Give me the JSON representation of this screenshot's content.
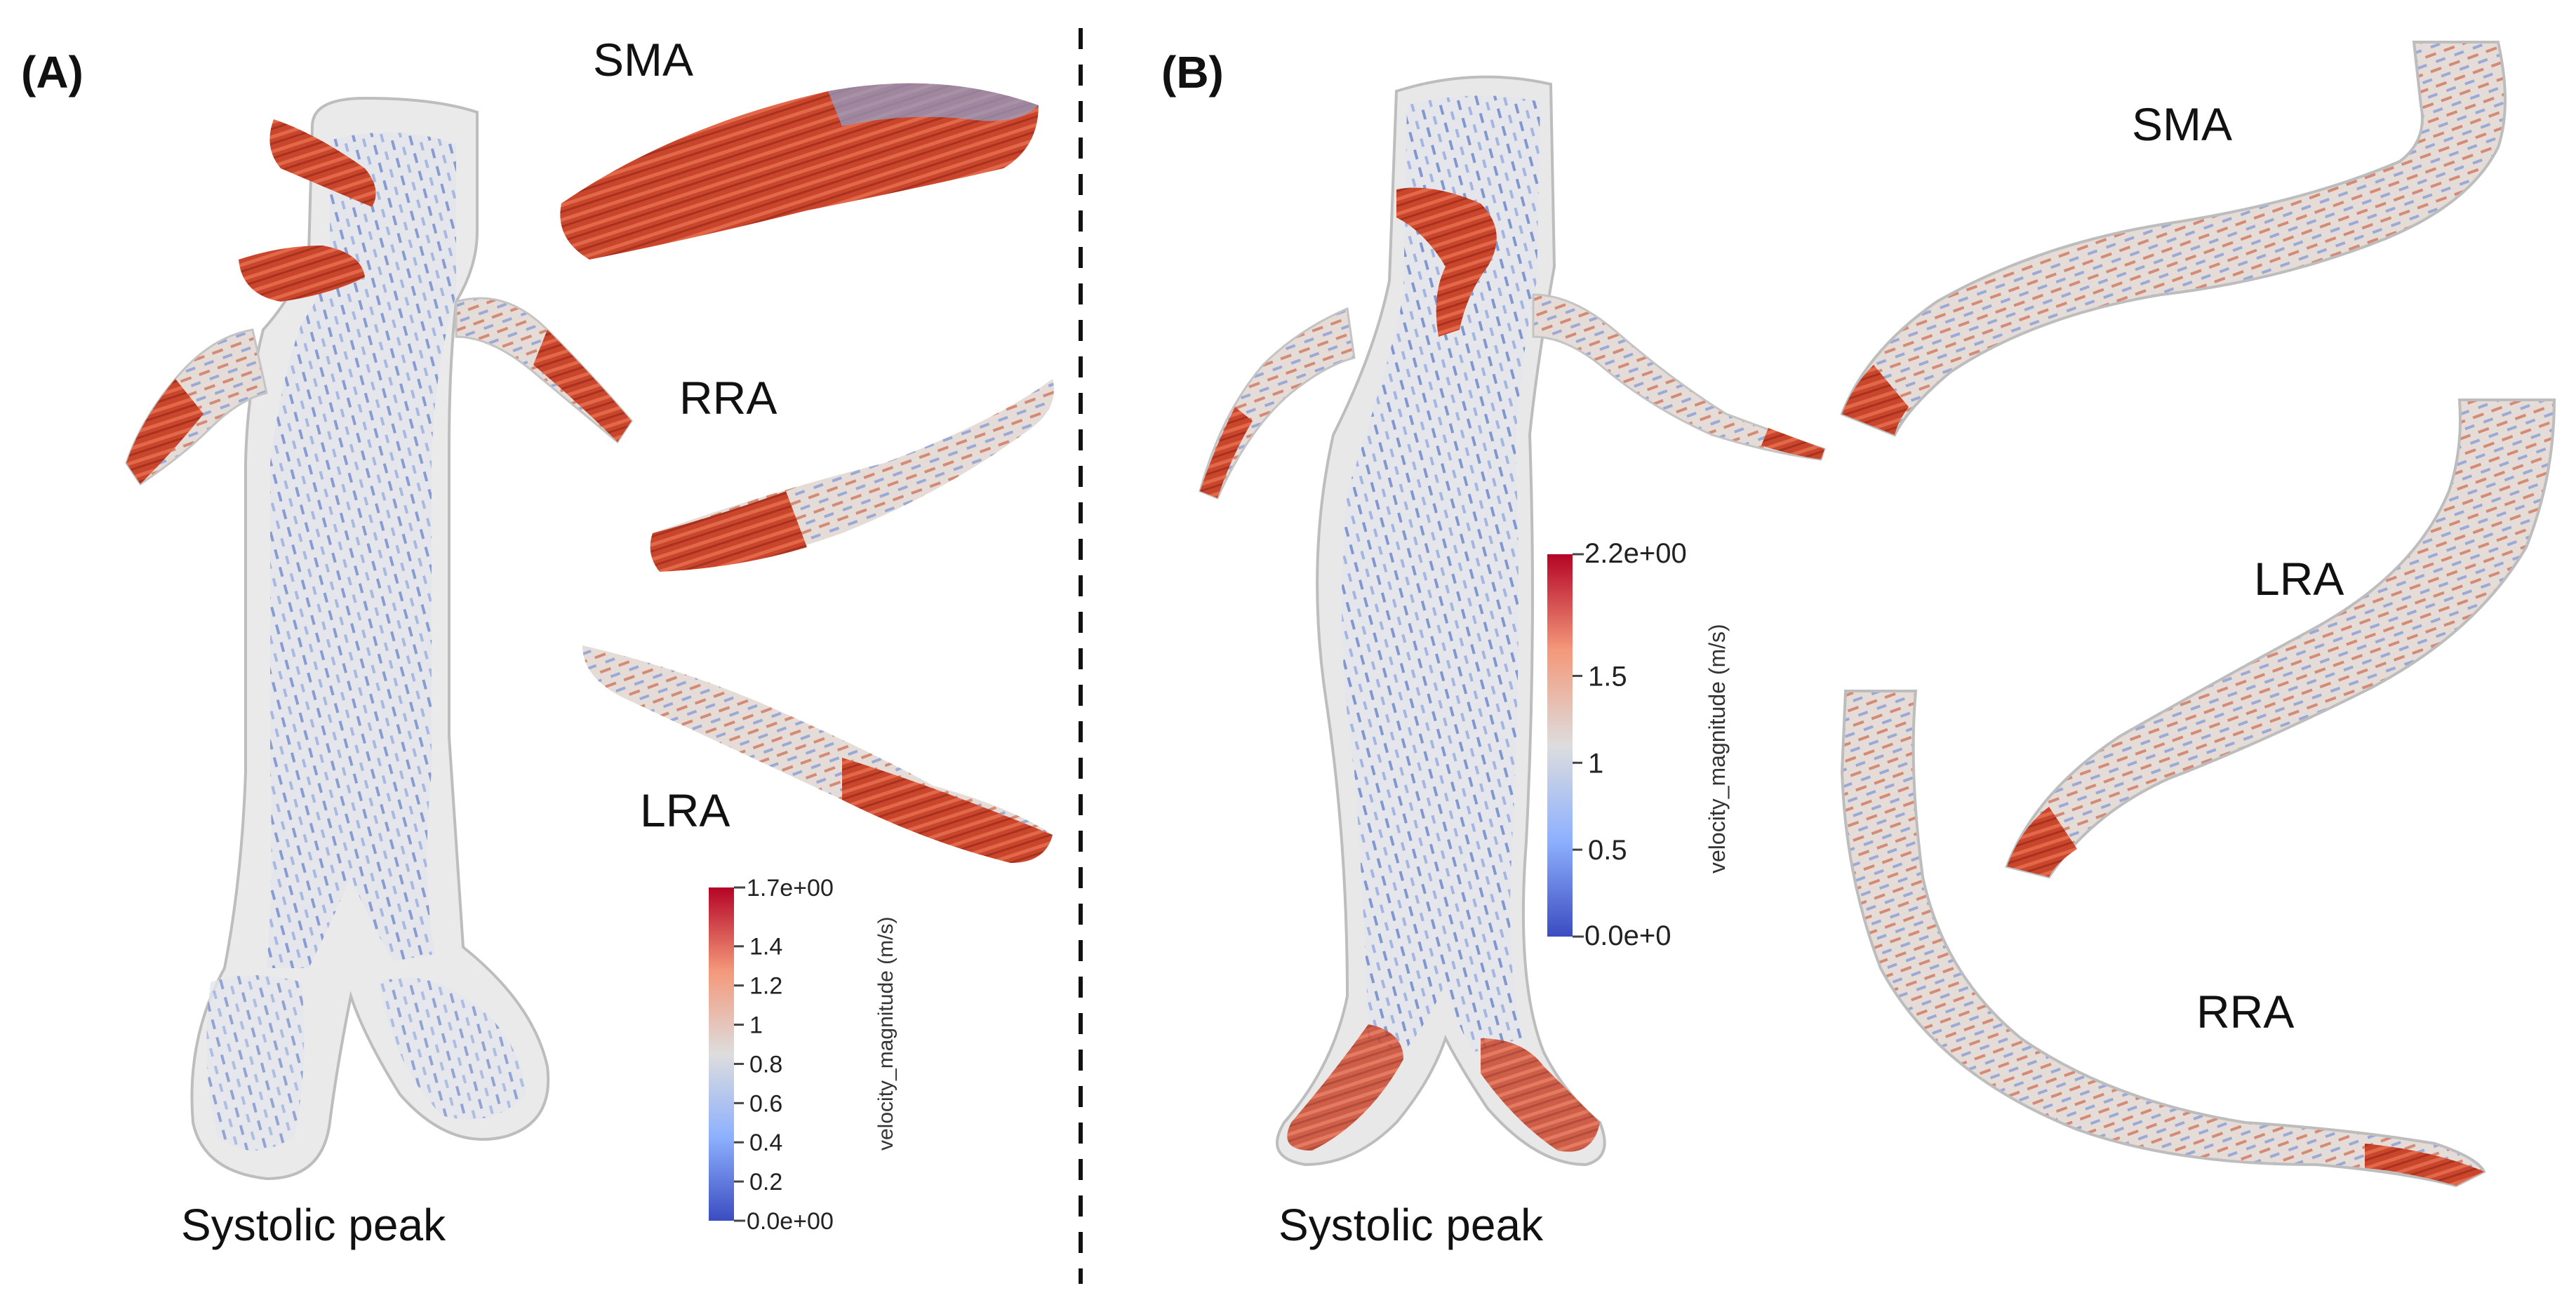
{
  "panels": [
    {
      "id": "A",
      "tag": "(A)",
      "caption": "Systolic peak",
      "vessels": {
        "sma": "SMA",
        "rra": "RRA",
        "lra": "LRA"
      },
      "colorbar": {
        "title": "velocity_magnitude  (m/s)",
        "max_label": "1.7e+00",
        "min_label": "0.0e+00",
        "ticks": [
          "1.4",
          "1.2",
          "1",
          "0.8",
          "0.6",
          "0.4",
          "0.2"
        ],
        "tick_values": [
          1.4,
          1.2,
          1.0,
          0.8,
          0.6,
          0.4,
          0.2
        ],
        "range": [
          0,
          1.7
        ]
      }
    },
    {
      "id": "B",
      "tag": "(B)",
      "caption": "Systolic peak",
      "vessels": {
        "sma": "SMA",
        "lra": "LRA",
        "rra": "RRA"
      },
      "colorbar": {
        "title": "velocity_magnitude  (m/s)",
        "max_label": "2.2e+00",
        "min_label": "0.0e+0",
        "ticks": [
          "1.5",
          "1",
          "0.5"
        ],
        "tick_values": [
          1.5,
          1.0,
          0.5
        ],
        "range": [
          0,
          2.2
        ]
      }
    }
  ],
  "colors": {
    "low": "#3b4cc0",
    "mid": "#dddddd",
    "high": "#b40426",
    "wall": "#c8c8c8",
    "divider": "#111111"
  }
}
